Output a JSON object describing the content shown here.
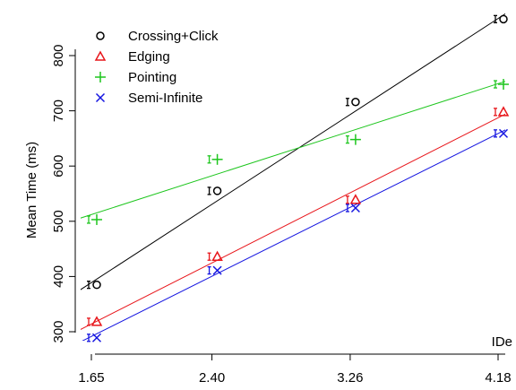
{
  "chart_data": {
    "type": "scatter",
    "title": "",
    "xlabel": "IDe",
    "ylabel": "Mean Time (ms)",
    "x_ticks": [
      "1.65",
      "2.40",
      "3.26",
      "4.18"
    ],
    "y_ticks": [
      300,
      400,
      500,
      600,
      700,
      800
    ],
    "xlim": [
      1.58,
      4.26
    ],
    "ylim": [
      280,
      865
    ],
    "x": [
      1.65,
      2.4,
      3.26,
      4.18
    ],
    "grid": false,
    "legend_position": "top-left",
    "series": [
      {
        "name": "Crossing+Click",
        "marker": "circle",
        "color": "#000000",
        "values": [
          385,
          555,
          716,
          866
        ],
        "fit": {
          "slope": 189.0,
          "intercept": 77.1
        }
      },
      {
        "name": "Edging",
        "marker": "triangle",
        "color": "#e8161b",
        "values": [
          318,
          436,
          539,
          698
        ],
        "fit": {
          "slope": 147.6,
          "intercept": 70.4
        }
      },
      {
        "name": "Pointing",
        "marker": "plus",
        "color": "#1ec61e",
        "values": [
          503,
          612,
          648,
          748
        ],
        "fit": {
          "slope": 93.7,
          "intercept": 357.5
        }
      },
      {
        "name": "Semi-Infinite",
        "marker": "cross",
        "color": "#1414e0",
        "values": [
          289,
          411,
          524,
          659
        ],
        "fit": {
          "slope": 145.2,
          "intercept": 51.9
        }
      }
    ]
  }
}
